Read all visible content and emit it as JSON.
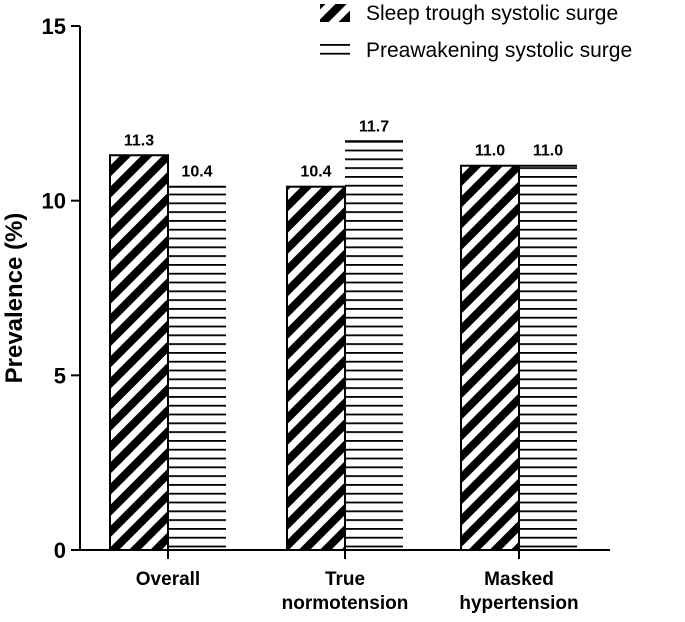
{
  "chart_data": {
    "type": "bar",
    "categories": [
      "Overall",
      "True normotension",
      "Masked hypertension"
    ],
    "category_lines": [
      [
        "Overall"
      ],
      [
        "True",
        "normotension"
      ],
      [
        "Masked",
        "hypertension"
      ]
    ],
    "series": [
      {
        "name": "Sleep trough systolic surge",
        "values": [
          11.3,
          10.4,
          11.0
        ],
        "value_labels": [
          "11.3",
          "10.4",
          "11.0"
        ],
        "pattern": "diagonal-stripes"
      },
      {
        "name": "Preawakening systolic surge",
        "values": [
          10.4,
          11.7,
          11.0
        ],
        "value_labels": [
          "10.4",
          "11.7",
          "11.0"
        ],
        "pattern": "horizontal-lines"
      }
    ],
    "ylabel": "Prevalence (%)",
    "xlabel": "",
    "ylim": [
      0,
      15
    ],
    "yticks": [
      0,
      5,
      10,
      15
    ],
    "grid": false,
    "legend_position": "top-right",
    "colors": {
      "ink": "#000000",
      "background": "#ffffff"
    }
  }
}
